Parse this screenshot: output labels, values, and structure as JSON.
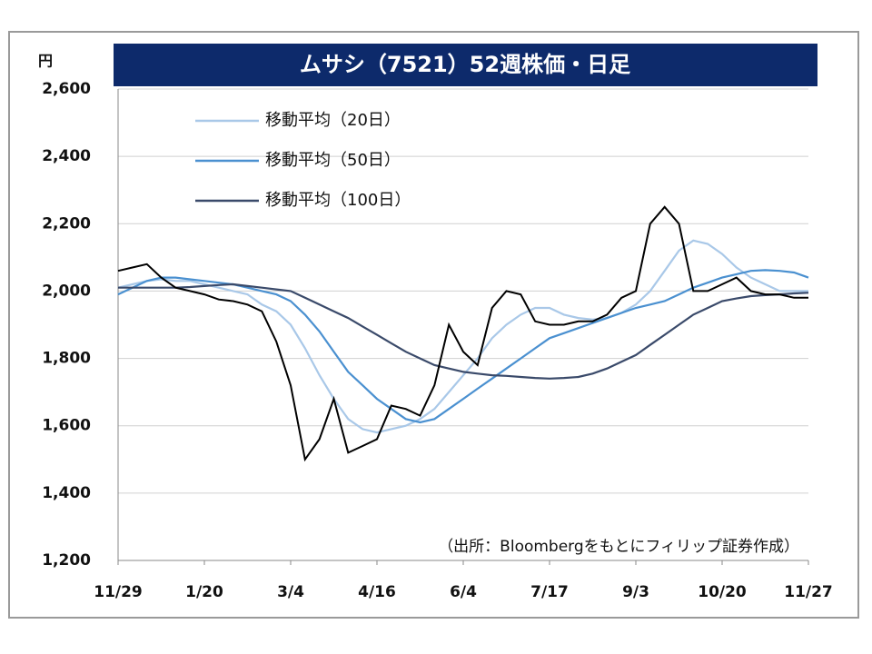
{
  "chart_data": {
    "type": "line",
    "title": "ムサシ（7521）52週株価・日足",
    "y_unit": "円",
    "note": "（出所：Bloombergをもとにフィリップ証券作成）",
    "categories": [
      "11/29",
      null,
      null,
      null,
      null,
      null,
      "1/20",
      null,
      null,
      null,
      null,
      null,
      "3/4",
      null,
      null,
      null,
      null,
      null,
      "4/16",
      null,
      null,
      null,
      null,
      null,
      "6/4",
      null,
      null,
      null,
      null,
      null,
      "7/17",
      null,
      null,
      null,
      null,
      null,
      "9/3",
      null,
      null,
      null,
      null,
      null,
      "10/20",
      null,
      null,
      null,
      null,
      null,
      "11/27"
    ],
    "series": [
      {
        "color": "#000000",
        "values": [
          2060,
          2070,
          2080,
          2040,
          2010,
          2000,
          1990,
          1975,
          1970,
          1960,
          1940,
          1850,
          1720,
          1500,
          1560,
          1680,
          1520,
          1540,
          1560,
          1660,
          1650,
          1630,
          1720,
          1900,
          1820,
          1780,
          1950,
          2000,
          1990,
          1910,
          1900,
          1900,
          1910,
          1910,
          1930,
          1980,
          2000,
          2200,
          2250,
          2200,
          2000,
          2000,
          2020,
          2040,
          2000,
          1990,
          1990,
          1980,
          1980
        ]
      },
      {
        "name": "移動平均（20日）",
        "color": "#a9c8e8",
        "values": [
          2010,
          2020,
          2030,
          2035,
          2030,
          2030,
          2020,
          2010,
          2000,
          1990,
          1960,
          1940,
          1900,
          1830,
          1750,
          1680,
          1620,
          1590,
          1580,
          1590,
          1600,
          1620,
          1650,
          1700,
          1750,
          1800,
          1860,
          1900,
          1930,
          1950,
          1950,
          1930,
          1920,
          1915,
          1920,
          1935,
          1960,
          2000,
          2060,
          2120,
          2150,
          2140,
          2110,
          2070,
          2040,
          2020,
          2000,
          2000,
          2000
        ]
      },
      {
        "name": "移動平均（50日）",
        "color": "#4a90d0",
        "values": [
          1990,
          2010,
          2030,
          2040,
          2040,
          2035,
          2030,
          2025,
          2020,
          2010,
          2000,
          1990,
          1970,
          1930,
          1880,
          1820,
          1760,
          1720,
          1680,
          1650,
          1620,
          1610,
          1620,
          1650,
          1680,
          1710,
          1740,
          1770,
          1800,
          1830,
          1860,
          1875,
          1890,
          1905,
          1920,
          1935,
          1950,
          1960,
          1970,
          1990,
          2010,
          2025,
          2040,
          2050,
          2060,
          2062,
          2060,
          2055,
          2040
        ]
      },
      {
        "name": "移動平均（100日）",
        "color": "#3a4a6a",
        "values": [
          2010,
          2010,
          2010,
          2010,
          2010,
          2012,
          2015,
          2018,
          2020,
          2015,
          2010,
          2005,
          2000,
          1980,
          1960,
          1940,
          1920,
          1895,
          1870,
          1845,
          1820,
          1800,
          1780,
          1770,
          1760,
          1755,
          1750,
          1748,
          1745,
          1742,
          1740,
          1742,
          1745,
          1755,
          1770,
          1790,
          1810,
          1840,
          1870,
          1900,
          1930,
          1950,
          1970,
          1978,
          1985,
          1988,
          1990,
          1993,
          1995
        ]
      }
    ],
    "ylim": [
      1200,
      2600
    ],
    "yticks": [
      {
        "value": 1200,
        "label": "1,200"
      },
      {
        "value": 1400,
        "label": "1,400"
      },
      {
        "value": 1600,
        "label": "1,600"
      },
      {
        "value": 1800,
        "label": "1,800"
      },
      {
        "value": 2000,
        "label": "2,000"
      },
      {
        "value": 2200,
        "label": "2,200"
      },
      {
        "value": 2400,
        "label": "2,400"
      },
      {
        "value": 2600,
        "label": "2,600"
      }
    ],
    "grid": true
  }
}
